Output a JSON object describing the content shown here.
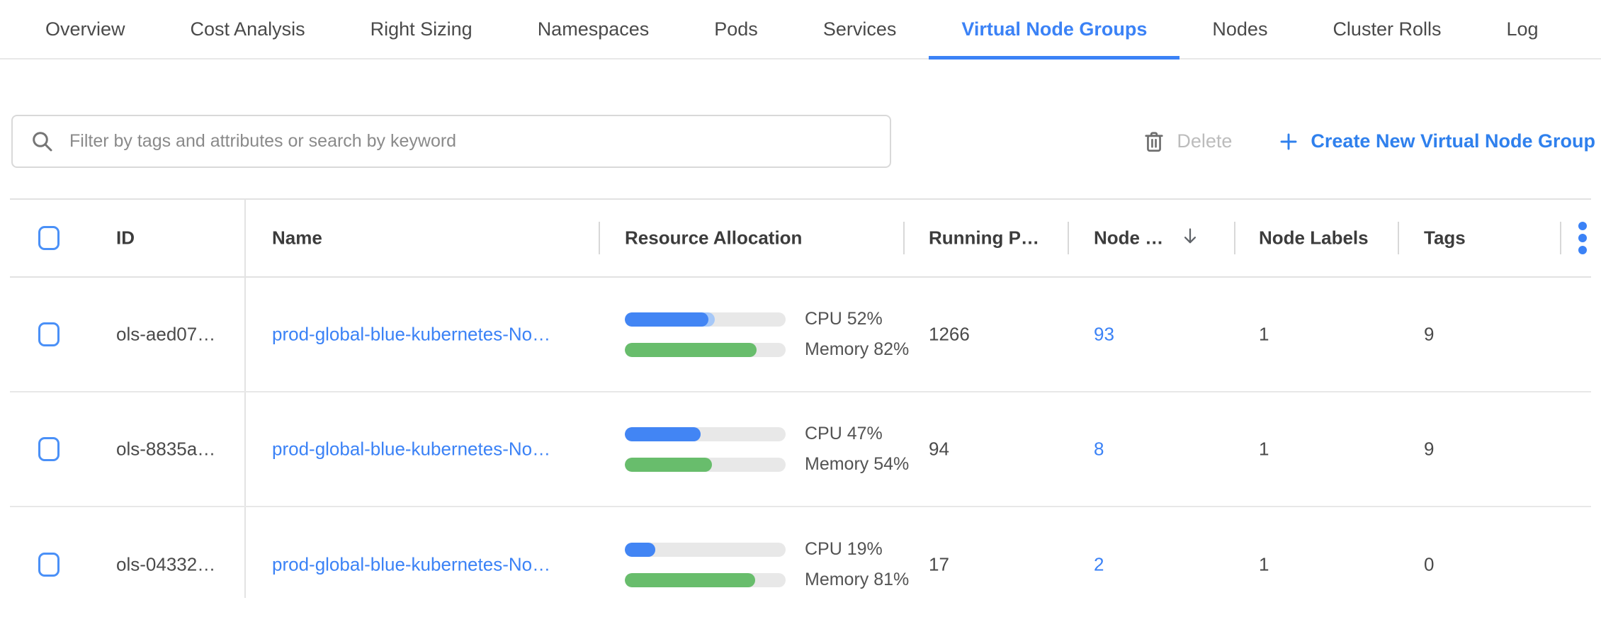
{
  "tabs": {
    "items": [
      {
        "label": "Overview",
        "active": false
      },
      {
        "label": "Cost Analysis",
        "active": false
      },
      {
        "label": "Right Sizing",
        "active": false
      },
      {
        "label": "Namespaces",
        "active": false
      },
      {
        "label": "Pods",
        "active": false
      },
      {
        "label": "Services",
        "active": false
      },
      {
        "label": "Virtual Node Groups",
        "active": true
      },
      {
        "label": "Nodes",
        "active": false
      },
      {
        "label": "Cluster Rolls",
        "active": false
      },
      {
        "label": "Log",
        "active": false
      }
    ]
  },
  "toolbar": {
    "filter_placeholder": "Filter by tags and attributes or search by keyword",
    "delete_label": "Delete",
    "create_label": "Create New Virtual Node Group"
  },
  "table": {
    "header": {
      "id": "ID",
      "name": "Name",
      "resource": "Resource Allocation",
      "running_pods": "Running P…",
      "nodes": "Node …",
      "node_labels": "Node Labels",
      "tags": "Tags"
    },
    "sort": {
      "column": "nodes",
      "direction": "desc"
    },
    "rows": [
      {
        "id": "ols-aed07…",
        "name": "prod-global-blue-kubernetes-No…",
        "cpu_pct": 52,
        "cpu_buffer_pct": 56,
        "cpu_label": "CPU 52%",
        "mem_pct": 82,
        "mem_label": "Memory 82%",
        "running_pods": "1266",
        "nodes": "93",
        "node_labels": "1",
        "tags": "9"
      },
      {
        "id": "ols-8835a…",
        "name": "prod-global-blue-kubernetes-No…",
        "cpu_pct": 47,
        "cpu_buffer_pct": 47,
        "cpu_label": "CPU 47%",
        "mem_pct": 54,
        "mem_label": "Memory 54%",
        "running_pods": "94",
        "nodes": "8",
        "node_labels": "1",
        "tags": "9"
      },
      {
        "id": "ols-04332…",
        "name": "prod-global-blue-kubernetes-No…",
        "cpu_pct": 19,
        "cpu_buffer_pct": 19,
        "cpu_label": "CPU 19%",
        "mem_pct": 81,
        "mem_label": "Memory 81%",
        "running_pods": "17",
        "nodes": "2",
        "node_labels": "1",
        "tags": "0"
      }
    ]
  },
  "colors": {
    "accent_blue": "#3b82f6",
    "bar_blue": "#4285f4",
    "bar_blue_light": "#a6c8f8",
    "bar_green": "#68bd6c",
    "bar_track": "#e8e8e8"
  }
}
